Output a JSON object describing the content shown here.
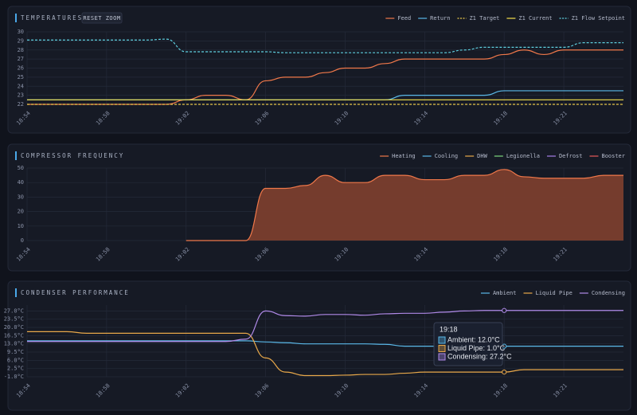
{
  "chart_data": [
    {
      "type": "line",
      "title": "TEMPERATURES",
      "reset_zoom": "RESET ZOOM",
      "x": [
        "18:54",
        "18:55",
        "18:56",
        "18:57",
        "18:58",
        "18:59",
        "19:00",
        "19:01",
        "19:02",
        "19:03",
        "19:04",
        "19:05",
        "19:06",
        "19:07",
        "19:08",
        "19:09",
        "19:10",
        "19:11",
        "19:12",
        "19:13",
        "19:14",
        "19:15",
        "19:16",
        "19:17",
        "19:18",
        "19:19",
        "19:20",
        "19:21",
        "19:22",
        "19:23",
        "19:24"
      ],
      "xticks": [
        "18:54",
        "18:58",
        "19:02",
        "19:06",
        "19:10",
        "19:14",
        "19:18",
        "19:21"
      ],
      "ylim": [
        22,
        30
      ],
      "yticks": [
        22,
        23,
        24,
        25,
        26,
        27,
        28,
        29,
        30
      ],
      "grid": true,
      "legend": "top-right",
      "series": [
        {
          "name": "Feed",
          "color": "#f0784a",
          "values": [
            22,
            22,
            22,
            22,
            22,
            22,
            22,
            22,
            22.5,
            23,
            23,
            22.5,
            24.6,
            25,
            25,
            25.5,
            26,
            26,
            26.5,
            27,
            27,
            27,
            27,
            27,
            27.5,
            28,
            27.5,
            28,
            28,
            28,
            28
          ]
        },
        {
          "name": "Return",
          "color": "#5ab8e8",
          "values": [
            22.5,
            22.5,
            22.5,
            22.5,
            22.5,
            22.5,
            22.5,
            22.5,
            22.5,
            22.5,
            22.5,
            22.5,
            22.5,
            22.5,
            22.5,
            22.5,
            22.5,
            22.5,
            22.5,
            23,
            23,
            23,
            23,
            23,
            23.5,
            23.5,
            23.5,
            23.5,
            23.5,
            23.5,
            23.5
          ]
        },
        {
          "name": "Z1 Target",
          "color": "#e8c84a",
          "dashed": true,
          "values": [
            22,
            22,
            22,
            22,
            22,
            22,
            22,
            22,
            22,
            22,
            22,
            22,
            22,
            22,
            22,
            22,
            22,
            22,
            22,
            22,
            22,
            22,
            22,
            22,
            22,
            22,
            22,
            22,
            22,
            22,
            22
          ]
        },
        {
          "name": "Z1 Current",
          "color": "#f5e04a",
          "values": [
            22.5,
            22.5,
            22.5,
            22.5,
            22.5,
            22.5,
            22.5,
            22.5,
            22.5,
            22.5,
            22.5,
            22.5,
            22.5,
            22.5,
            22.5,
            22.5,
            22.5,
            22.5,
            22.5,
            22.5,
            22.5,
            22.5,
            22.5,
            22.5,
            22.5,
            22.5,
            22.5,
            22.5,
            22.5,
            22.5,
            22.5
          ]
        },
        {
          "name": "Z1 Flow Setpoint",
          "color": "#5fd0e0",
          "dashed": true,
          "values": [
            29.1,
            29.1,
            29.1,
            29.1,
            29.1,
            29.1,
            29.1,
            29.2,
            27.8,
            27.8,
            27.8,
            27.8,
            27.8,
            27.7,
            27.7,
            27.7,
            27.7,
            27.7,
            27.7,
            27.7,
            27.7,
            27.7,
            28,
            28.3,
            28.3,
            28.3,
            28.3,
            28.3,
            28.8,
            28.8,
            28.8
          ]
        }
      ]
    },
    {
      "type": "area",
      "title": "COMPRESSOR FREQUENCY",
      "x": [
        "18:54",
        "18:55",
        "18:56",
        "18:57",
        "18:58",
        "18:59",
        "19:00",
        "19:01",
        "19:02",
        "19:03",
        "19:04",
        "19:05",
        "19:06",
        "19:07",
        "19:08",
        "19:09",
        "19:10",
        "19:11",
        "19:12",
        "19:13",
        "19:14",
        "19:15",
        "19:16",
        "19:17",
        "19:18",
        "19:19",
        "19:20",
        "19:21",
        "19:22",
        "19:23",
        "19:24"
      ],
      "xticks": [
        "18:54",
        "18:58",
        "19:02",
        "19:06",
        "19:10",
        "19:14",
        "19:18",
        "19:21"
      ],
      "ylim": [
        0,
        50
      ],
      "yticks": [
        0,
        10,
        20,
        30,
        40,
        50
      ],
      "grid": true,
      "legend": "top-right",
      "series": [
        {
          "name": "Heating",
          "color": "#f0784a",
          "fill": "#7a3e2d",
          "values": [
            null,
            null,
            null,
            null,
            null,
            null,
            null,
            null,
            0,
            0,
            0,
            0,
            36,
            36,
            38,
            45,
            40,
            40,
            45,
            45,
            42,
            42,
            45,
            45,
            49,
            44,
            43,
            43,
            43,
            45,
            45
          ]
        },
        {
          "name": "Cooling",
          "color": "#5ab8e8"
        },
        {
          "name": "DHW",
          "color": "#e8a84a"
        },
        {
          "name": "Legionella",
          "color": "#7ed87e"
        },
        {
          "name": "Defrost",
          "color": "#a77ee8"
        },
        {
          "name": "Booster",
          "color": "#e85a5a"
        }
      ]
    },
    {
      "type": "line",
      "title": "CONDENSER PERFORMANCE",
      "x": [
        "18:54",
        "18:55",
        "18:56",
        "18:57",
        "18:58",
        "18:59",
        "19:00",
        "19:01",
        "19:02",
        "19:03",
        "19:04",
        "19:05",
        "19:06",
        "19:07",
        "19:08",
        "19:09",
        "19:10",
        "19:11",
        "19:12",
        "19:13",
        "19:14",
        "19:15",
        "19:16",
        "19:17",
        "19:18",
        "19:19",
        "19:20",
        "19:21",
        "19:22",
        "19:23",
        "19:24"
      ],
      "xticks": [
        "18:54",
        "18:58",
        "19:02",
        "19:06",
        "19:10",
        "19:14",
        "19:18",
        "19:21"
      ],
      "ylim": [
        -1,
        29.5
      ],
      "yticks": [
        {
          "value": -1,
          "label": "-1.0°C"
        },
        {
          "value": 2.5,
          "label": "2.5°C"
        },
        {
          "value": 6,
          "label": "6.0°C"
        },
        {
          "value": 9.5,
          "label": "9.5°C"
        },
        {
          "value": 13,
          "label": "13.0°C"
        },
        {
          "value": 16.5,
          "label": "16.5°C"
        },
        {
          "value": 20,
          "label": "20.0°C"
        },
        {
          "value": 23.5,
          "label": "23.5°C"
        },
        {
          "value": 27,
          "label": "27.0°C"
        }
      ],
      "grid": true,
      "legend": "top-right",
      "series": [
        {
          "name": "Ambient",
          "color": "#5ab8e8",
          "values": [
            14.3,
            14.3,
            14.3,
            14.3,
            14.3,
            14.3,
            14.3,
            14.3,
            14.3,
            14.3,
            14.3,
            14.3,
            13.8,
            13.5,
            13,
            13,
            13,
            13,
            12.8,
            12,
            12,
            12,
            12,
            12,
            12,
            12,
            12,
            12,
            12,
            12,
            12
          ]
        },
        {
          "name": "Liquid Pipe",
          "color": "#e8a84a",
          "values": [
            18.2,
            18.2,
            18.2,
            17.5,
            17.5,
            17.5,
            17.5,
            17.5,
            17.5,
            17.5,
            17.5,
            17.5,
            7,
            1,
            -0.5,
            -0.5,
            -0.3,
            0,
            0,
            0.5,
            1,
            1,
            1,
            1,
            1,
            2,
            2,
            2,
            2,
            2,
            2
          ]
        },
        {
          "name": "Condensing",
          "color": "#b08ae8",
          "values": [
            14,
            14,
            14,
            14,
            14,
            14,
            14,
            14,
            14,
            14,
            14,
            15,
            27,
            25,
            24.8,
            25.5,
            25.5,
            25.2,
            25.8,
            26,
            26,
            26.5,
            27,
            27.2,
            27.2,
            27.2,
            27.2,
            27.2,
            27.2,
            27.2,
            27.2
          ]
        }
      ],
      "tooltip": {
        "title": "19:18",
        "items": [
          "Ambient: 12.0°C",
          "Liquid Pipe: 1.0°C",
          "Condensing: 27.2°C"
        ]
      }
    }
  ]
}
